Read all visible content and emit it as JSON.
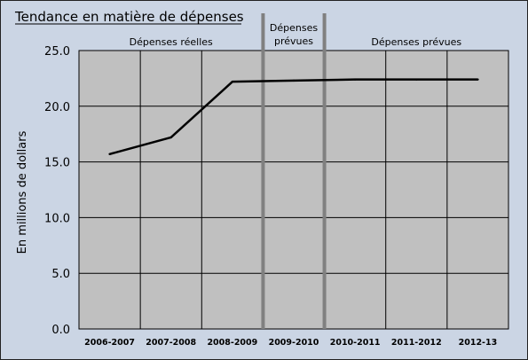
{
  "chart_data": {
    "type": "line",
    "title": "Tendance en matière de dépenses",
    "xlabel": "",
    "ylabel": "En millions de dollars",
    "categories": [
      "2006-2007",
      "2007-2008",
      "2008-2009",
      "2009-2010",
      "2010-2011",
      "2011-2012",
      "2012-13"
    ],
    "series": [
      {
        "values": [
          15.7,
          17.2,
          22.2,
          22.3,
          22.4,
          22.4,
          22.4
        ]
      }
    ],
    "ylim": [
      0,
      25
    ],
    "yticks": [
      "0.0",
      "5.0",
      "10.0",
      "15.0",
      "20.0",
      "25.0"
    ],
    "grid": true,
    "sections": [
      {
        "label": "Dépenses réelles",
        "from": 0,
        "to": 2
      },
      {
        "label": "Dépenses prévues",
        "from": 3,
        "to": 3
      },
      {
        "label": "Dépenses prévues",
        "from": 4,
        "to": 6
      }
    ],
    "colors": {
      "frame_background": "#cbd5e4",
      "plot_background": "#c0c0c0",
      "grid": "#000000",
      "line": "#000000",
      "divider": "#808080"
    }
  }
}
